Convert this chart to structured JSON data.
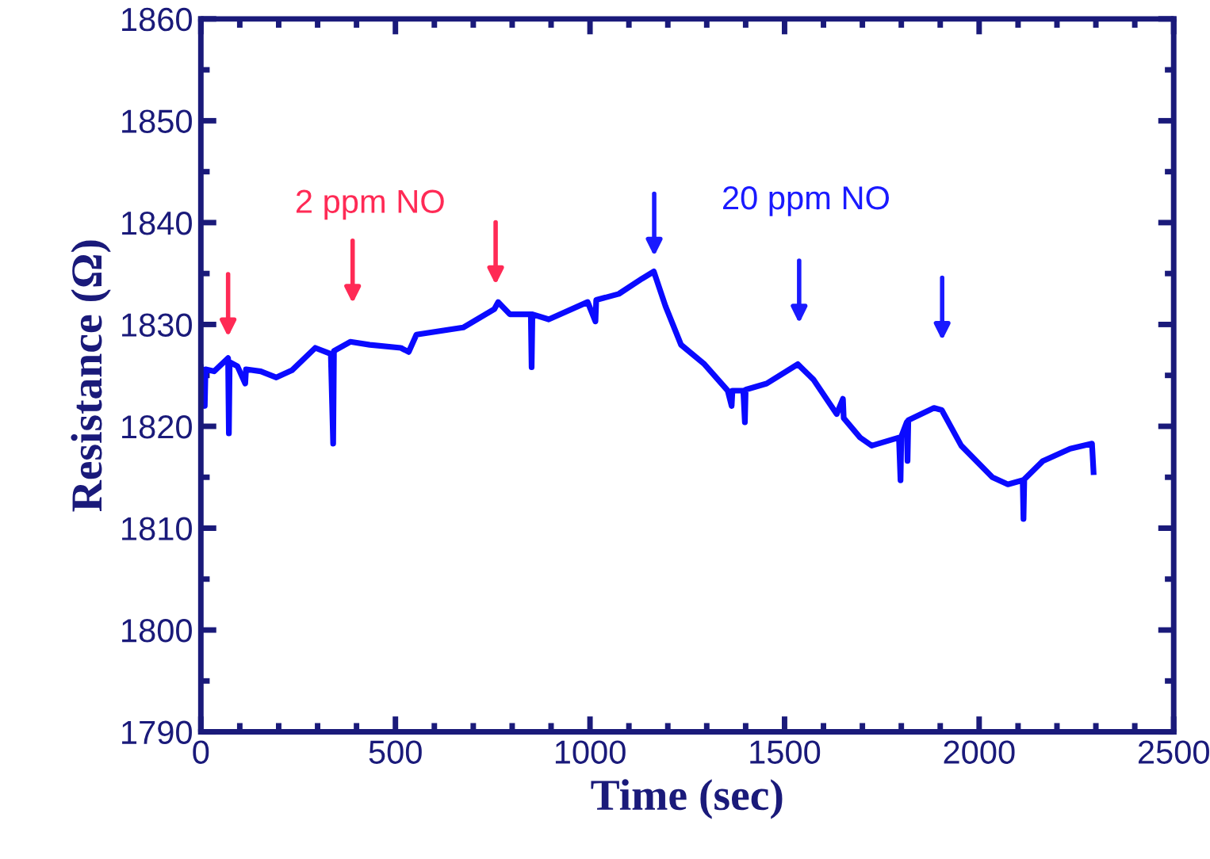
{
  "chart_data": {
    "type": "line",
    "xlabel": "Time (sec)",
    "ylabel": "Resistance (Ω)",
    "xlim": [
      0,
      2500
    ],
    "xticks": [
      0,
      500,
      1000,
      1500,
      2000,
      2500
    ],
    "ylim": [
      1790,
      1860
    ],
    "yticks": [
      1790,
      1800,
      1810,
      1820,
      1830,
      1840,
      1850,
      1860
    ],
    "grid": false,
    "marker": "none",
    "line_style": "solid",
    "series": [
      {
        "color": "#0a0aff",
        "x": [
          0,
          10,
          12,
          34,
          70,
          72,
          74,
          94,
          114,
          116,
          154,
          194,
          234,
          294,
          334,
          340,
          342,
          384,
          434,
          514,
          534,
          554,
          674,
          754,
          764,
          794,
          848,
          850,
          852,
          894,
          994,
          1014,
          1016,
          1074,
          1134,
          1164,
          1194,
          1234,
          1294,
          1354,
          1364,
          1366,
          1394,
          1398,
          1400,
          1454,
          1534,
          1574,
          1634,
          1650,
          1652,
          1694,
          1724,
          1794,
          1798,
          1800,
          1814,
          1816,
          1818,
          1884,
          1904,
          1954,
          2034,
          2074,
          2112,
          2114,
          2116,
          2164,
          2234,
          2290,
          2294
        ],
        "values": [
          1825.8,
          1822,
          1825.6,
          1825.4,
          1826.7,
          1819.3,
          1826.3,
          1825.9,
          1824.2,
          1825.6,
          1825.4,
          1824.8,
          1825.5,
          1827.7,
          1827.1,
          1818.3,
          1827.4,
          1828.3,
          1828.0,
          1827.7,
          1827.3,
          1829,
          1829.7,
          1831.5,
          1832.2,
          1831,
          1831,
          1825.8,
          1831,
          1830.5,
          1832.2,
          1830.3,
          1832.4,
          1833,
          1834.5,
          1835.2,
          1831.8,
          1828,
          1826.1,
          1823.5,
          1822,
          1823.5,
          1823.5,
          1820.4,
          1823.6,
          1824.2,
          1826.1,
          1824.6,
          1821.2,
          1822.7,
          1820.8,
          1818.9,
          1818.1,
          1818.9,
          1814.7,
          1819,
          1820.4,
          1816.6,
          1820.6,
          1821.8,
          1821.6,
          1818.1,
          1815,
          1814.3,
          1814.7,
          1810.9,
          1814.8,
          1816.6,
          1817.8,
          1818.3,
          1815.5
        ]
      }
    ],
    "annotations": [
      "2 ppm NO",
      "20 ppm NO"
    ]
  }
}
